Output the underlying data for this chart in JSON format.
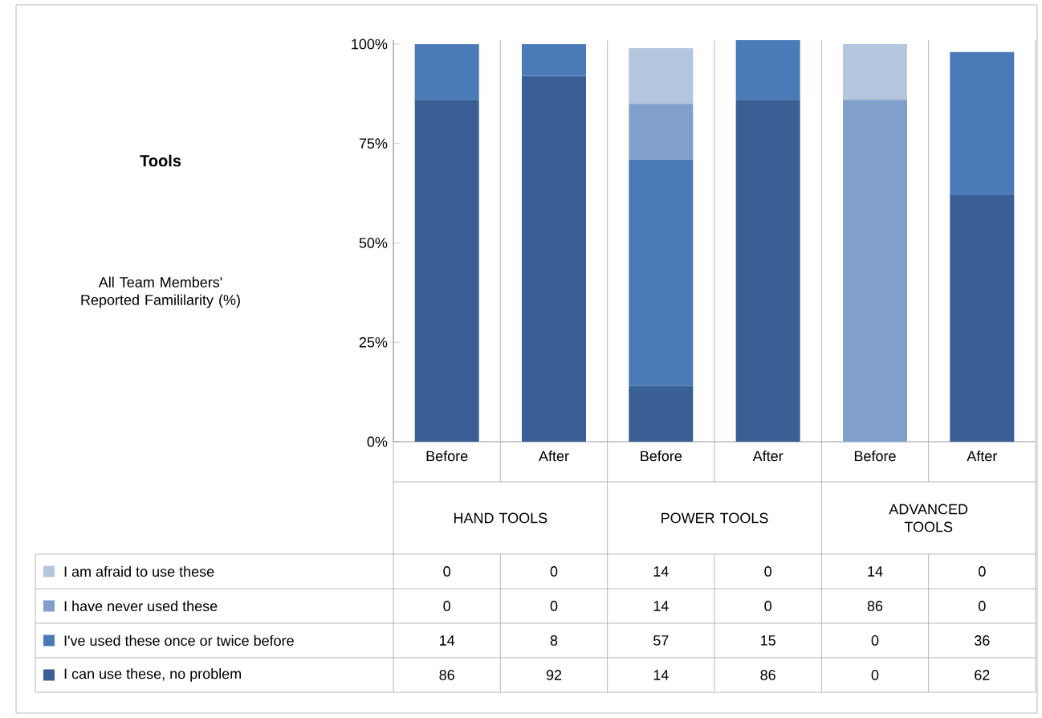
{
  "chart_data": {
    "type": "bar",
    "stacked": true,
    "title": "Tools",
    "categories": [
      "Before",
      "After",
      "Before",
      "After",
      "Before",
      "After"
    ],
    "annotations": [
      "All Team Members' Reported Famililarity (%)",
      "HAND TOOLS",
      "POWER TOOLS",
      "ADVANCED TOOLS"
    ],
    "series": [
      {
        "name": "I can use these, no problem",
        "color": "#3a5f94",
        "values": [
          86,
          92,
          14,
          86,
          0,
          62
        ]
      },
      {
        "name": "I've used these once or twice before",
        "color": "#4a7ab8",
        "values": [
          14,
          8,
          57,
          15,
          0,
          36
        ]
      },
      {
        "name": "I have never used these",
        "color": "#809fcb",
        "values": [
          0,
          0,
          14,
          0,
          86,
          0
        ]
      },
      {
        "name": "I am afraid to use these",
        "color": "#b4c5de",
        "values": [
          0,
          0,
          14,
          0,
          14,
          0
        ]
      }
    ],
    "ylim": [
      0,
      101
    ],
    "yticks": [
      {
        "value": 0,
        "label": "0%"
      },
      {
        "value": 25,
        "label": "25%"
      },
      {
        "value": 50,
        "label": "50%"
      },
      {
        "value": 75,
        "label": "75%"
      },
      {
        "value": 100,
        "label": "100%"
      }
    ],
    "data_labels": true,
    "legend": "bottom",
    "grid": false
  }
}
